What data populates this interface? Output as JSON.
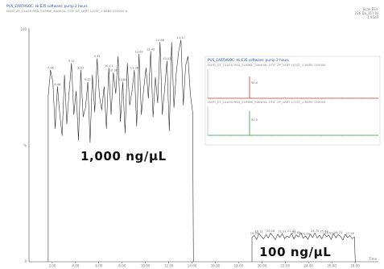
{
  "header": {
    "line1": "PUS_EARTHSOC: Hi-E35 software: pump 2 hours",
    "line2": "DART_ST_GLASS RSD_SUMME_MANUAL OTIF OP_VART 1/OST_1 BARE 250000 b",
    "right1": "Scan ES+",
    "right2": "226 Da_317 IU",
    "right3": "1.95e5"
  },
  "y_axis": {
    "top_label": "100",
    "mid_label": "%",
    "bottom_label": "0"
  },
  "x_axis": {
    "label": "Time"
  },
  "annotations": {
    "high": "1,000 ng/μL",
    "low": "100 ng/μL"
  },
  "chart_data": {
    "type": "line",
    "xlabel": "Time",
    "ylabel": "%",
    "ylim": [
      0,
      100
    ],
    "xlim": [
      0,
      30
    ],
    "x_ticks": [
      "2.00",
      "4.00",
      "6.00",
      "8.00",
      "10.00",
      "12.00",
      "14.00",
      "16.00",
      "18.00",
      "20.00",
      "22.00",
      "24.00",
      "26.00",
      "28.00"
    ],
    "series": [
      {
        "x": [
          1.65,
          1.85,
          2.05,
          2.25,
          2.45,
          2.65,
          2.85,
          3.05,
          3.25,
          3.45,
          3.65,
          3.85,
          4.05,
          4.25,
          4.45,
          4.65,
          4.85,
          5.05,
          5.25,
          5.45,
          5.65,
          5.85,
          6.05,
          6.25,
          6.45,
          6.65,
          6.85,
          7.05,
          7.25,
          7.45,
          7.65,
          7.85,
          8.05,
          8.25,
          8.45,
          8.65,
          8.85,
          9.05,
          9.25,
          9.45,
          9.65,
          9.85,
          10.05,
          10.25,
          10.45,
          10.65,
          10.85,
          11.05,
          11.25,
          11.45,
          11.65,
          11.85,
          12.05,
          12.25,
          12.45,
          12.65,
          12.85,
          13.05,
          13.25,
          13.45,
          13.65,
          13.85,
          14.05
        ],
        "y": [
          71,
          82,
          77,
          57,
          75,
          63,
          54,
          80,
          59,
          73,
          85,
          63,
          73,
          52,
          82,
          62,
          66,
          77,
          51,
          80,
          64,
          87,
          71,
          65,
          75,
          57,
          83,
          63,
          81,
          72,
          88,
          60,
          77,
          55,
          85,
          67,
          73,
          82,
          58,
          89,
          63,
          74,
          83,
          70,
          90,
          62,
          79,
          68,
          94,
          63,
          74,
          86,
          56,
          94,
          66,
          81,
          90,
          95,
          67,
          84,
          88,
          72,
          64
        ]
      },
      {
        "x": [
          19.15,
          19.35,
          19.55,
          19.75,
          19.95,
          20.15,
          20.35,
          20.55,
          20.75,
          20.95,
          21.15,
          21.35,
          21.55,
          21.75,
          21.95,
          22.15,
          22.35,
          22.55,
          22.75,
          22.95,
          23.15,
          23.35,
          23.55,
          23.75,
          23.95,
          24.15,
          24.35,
          24.55,
          24.75,
          24.95,
          25.15,
          25.35,
          25.55,
          25.75,
          25.95,
          26.15,
          26.35,
          26.55,
          26.75,
          26.95,
          27.15,
          27.35,
          27.55,
          27.75,
          27.95
        ],
        "y": [
          10.5,
          11.2,
          9.5,
          12.1,
          10.8,
          9.8,
          11.6,
          10.2,
          12.3,
          10.9,
          9.4,
          11.8,
          10.5,
          12.0,
          9.9,
          11.0,
          10.3,
          12.2,
          9.7,
          11.5,
          10.6,
          12.4,
          10.0,
          11.1,
          9.6,
          11.9,
          10.4,
          12.3,
          10.1,
          11.3,
          9.8,
          12.0,
          10.7,
          11.4,
          9.5,
          12.1,
          10.2,
          11.6,
          10.9,
          9.3,
          11.7,
          10.4,
          11.2,
          9.9,
          10.6
        ]
      }
    ],
    "peak_labels": [
      "7.96",
      "8.48",
      "9.11",
      "8.52",
      "9.21",
      "9.55",
      "10.11",
      "10.36",
      "10.84",
      "11.36",
      "11.62",
      "12.40",
      "12.88",
      "13.03",
      "14.17",
      "19.35",
      "20.11",
      "20.58",
      "21.22",
      "21.42",
      "23.68",
      "24.14",
      "24.70",
      "25.44",
      "26.01",
      "26.73",
      "27.18"
    ]
  },
  "inset": {
    "title": "PUS_EARTHSOC: Hi-E35 software: pump 2 hours",
    "trace1_label": "DART_ST_GLASS RSD_SUMME_MANUAL OTIF OP_VART 1/OST_1 BARE 250000",
    "trace2_label": "DART_ST_GLASS RSD_SUMME_MANUAL OTIF OP_VART 1/OST_1 BARE 250000",
    "trace1_color": "#d9342b",
    "trace2_color": "#2a9a3c",
    "peak1_label": "50.0",
    "peak2_label": "50.0"
  }
}
